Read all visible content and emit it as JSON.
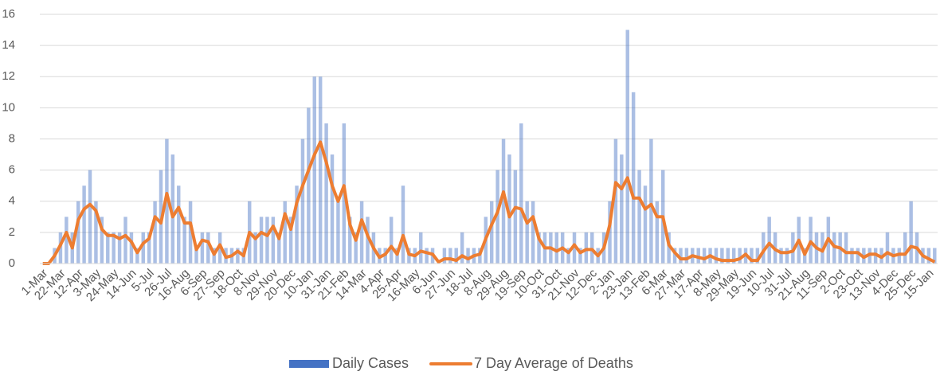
{
  "chart_data": {
    "type": "combo",
    "categories": [
      "1-Mar",
      null,
      null,
      "22-Mar",
      null,
      null,
      "12-Apr",
      null,
      null,
      "3-May",
      null,
      null,
      "24-May",
      null,
      null,
      "14-Jun",
      null,
      null,
      "5-Jul",
      null,
      null,
      "26-Jul",
      null,
      null,
      "16-Aug",
      null,
      null,
      "6-Sep",
      null,
      null,
      "27-Sep",
      null,
      null,
      "18-Oct",
      null,
      null,
      "8-Nov",
      null,
      null,
      "29-Nov",
      null,
      null,
      "20-Dec",
      null,
      null,
      "10-Jan",
      null,
      null,
      "31-Jan",
      null,
      null,
      "21-Feb",
      null,
      null,
      "14-Mar",
      null,
      null,
      "4-Apr",
      null,
      null,
      "25-Apr",
      null,
      null,
      "16-May",
      null,
      null,
      "6-Jun",
      null,
      null,
      "27-Jun",
      null,
      null,
      "18-Jul",
      null,
      null,
      "8-Aug",
      null,
      null,
      "29-Aug",
      null,
      null,
      "19-Sep",
      null,
      null,
      "10-Oct",
      null,
      null,
      "31-Oct",
      null,
      null,
      "21-Nov",
      null,
      null,
      "12-Dec",
      null,
      null,
      "2-Jan",
      null,
      null,
      "23-Jan",
      null,
      null,
      "13-Feb",
      null,
      null,
      "6-Mar",
      null,
      null,
      "27-Mar",
      null,
      null,
      "17-Apr",
      null,
      null,
      "8-May",
      null,
      null,
      "29-May",
      null,
      null,
      "19-Jun",
      null,
      null,
      "10-Jul",
      null,
      null,
      "31-Jul",
      null,
      null,
      "21-Aug",
      null,
      null,
      "11-Sep",
      null,
      null,
      "2-Oct",
      null,
      null,
      "23-Oct",
      null,
      null,
      "13-Nov",
      null,
      null,
      "4-Dec",
      null,
      null,
      "25-Dec",
      null,
      null,
      "15-Jan",
      null
    ],
    "series": [
      {
        "name": "Daily Cases",
        "type": "bar",
        "color": "#4472c4",
        "values": [
          0,
          0,
          1,
          2,
          3,
          2,
          4,
          5,
          6,
          4,
          3,
          2,
          2,
          2,
          3,
          2,
          1,
          2,
          2,
          4,
          6,
          8,
          7,
          5,
          3,
          4,
          1,
          2,
          2,
          1,
          2,
          1,
          1,
          1,
          1,
          4,
          2,
          3,
          3,
          3,
          2,
          4,
          3,
          5,
          8,
          10,
          12,
          12,
          9,
          7,
          4,
          9,
          3,
          2,
          4,
          3,
          2,
          1,
          1,
          3,
          1,
          5,
          1,
          1,
          2,
          1,
          1,
          0,
          1,
          1,
          1,
          2,
          1,
          1,
          1,
          3,
          4,
          6,
          8,
          7,
          6,
          9,
          4,
          4,
          2,
          2,
          2,
          2,
          2,
          1,
          2,
          1,
          2,
          2,
          1,
          2,
          4,
          8,
          7,
          15,
          11,
          6,
          5,
          8,
          4,
          6,
          2,
          1,
          1,
          1,
          1,
          1,
          1,
          1,
          1,
          1,
          1,
          1,
          1,
          1,
          1,
          1,
          2,
          3,
          2,
          1,
          1,
          2,
          3,
          1,
          3,
          2,
          2,
          3,
          2,
          2,
          2,
          1,
          1,
          1,
          1,
          1,
          1,
          2,
          1,
          1,
          2,
          4,
          2,
          1,
          1,
          1
        ]
      },
      {
        "name": "7 Day Average of Deaths",
        "type": "line",
        "color": "#ed7d31",
        "values": [
          0,
          0,
          0.5,
          1.2,
          2.0,
          1.0,
          2.8,
          3.5,
          3.8,
          3.4,
          2.2,
          1.8,
          1.8,
          1.6,
          1.8,
          1.4,
          0.7,
          1.3,
          1.6,
          3.0,
          2.6,
          4.5,
          3.0,
          3.6,
          2.6,
          2.6,
          0.9,
          1.5,
          1.4,
          0.6,
          1.2,
          0.4,
          0.5,
          0.8,
          0.5,
          2.0,
          1.6,
          2.0,
          1.8,
          2.4,
          1.6,
          3.2,
          2.2,
          3.9,
          5.0,
          6.0,
          7.0,
          7.8,
          6.5,
          5.0,
          4.0,
          5.0,
          2.5,
          1.5,
          2.8,
          1.8,
          1.0,
          0.4,
          0.6,
          1.1,
          0.6,
          1.8,
          0.6,
          0.5,
          0.8,
          0.7,
          0.6,
          0.1,
          0.3,
          0.3,
          0.2,
          0.5,
          0.3,
          0.5,
          0.6,
          1.6,
          2.5,
          3.3,
          4.6,
          3.0,
          3.6,
          3.5,
          2.6,
          3.0,
          1.6,
          1.0,
          1.0,
          0.8,
          1.0,
          0.7,
          1.2,
          0.7,
          0.9,
          0.9,
          0.5,
          1.0,
          2.5,
          5.2,
          4.8,
          5.5,
          4.2,
          4.2,
          3.5,
          3.8,
          3.0,
          3.0,
          1.2,
          0.7,
          0.3,
          0.3,
          0.5,
          0.4,
          0.3,
          0.5,
          0.3,
          0.2,
          0.2,
          0.2,
          0.3,
          0.6,
          0.2,
          0.2,
          0.8,
          1.3,
          0.9,
          0.7,
          0.7,
          0.8,
          1.5,
          0.6,
          1.4,
          1.0,
          0.8,
          1.6,
          1.1,
          1.0,
          0.7,
          0.7,
          0.7,
          0.4,
          0.6,
          0.6,
          0.4,
          0.7,
          0.5,
          0.6,
          0.6,
          1.1,
          1.0,
          0.5,
          0.3,
          0.1
        ]
      }
    ],
    "ylim": [
      0,
      16
    ],
    "yticks": [
      0,
      2,
      4,
      6,
      8,
      10,
      12,
      14,
      16
    ],
    "grid": true,
    "legend": "bottom"
  }
}
